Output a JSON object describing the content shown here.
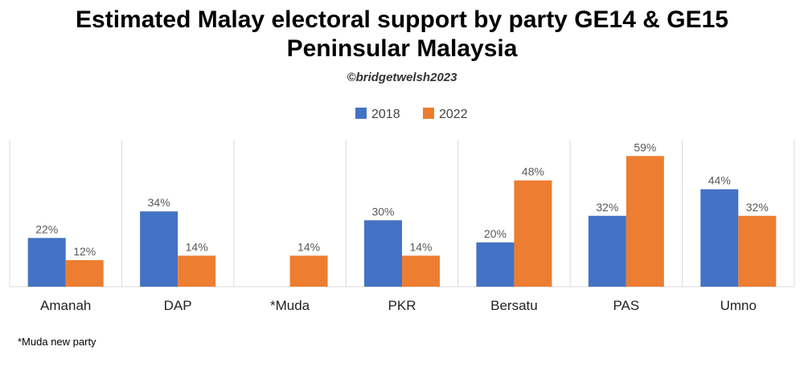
{
  "title_line1": "Estimated Malay electoral support by party GE14 & GE15",
  "title_line2": "Peninsular Malaysia",
  "credit": "©bridgetwelsh2023",
  "footnote": "*Muda new party",
  "chart_data": {
    "type": "bar",
    "categories": [
      "Amanah",
      "DAP",
      "*Muda",
      "PKR",
      "Bersatu",
      "PAS",
      "Umno"
    ],
    "series": [
      {
        "name": "2018",
        "color": "#4472C4",
        "values": [
          22,
          34,
          null,
          30,
          20,
          32,
          44
        ],
        "labels": [
          "22%",
          "34%",
          "",
          "30%",
          "20%",
          "32%",
          "44%"
        ]
      },
      {
        "name": "2022",
        "color": "#ED7D31",
        "values": [
          12,
          14,
          14,
          14,
          48,
          59,
          32
        ],
        "labels": [
          "12%",
          "14%",
          "14%",
          "14%",
          "48%",
          "59%",
          "32%"
        ]
      }
    ],
    "ylim": [
      0,
      66
    ],
    "grid": "vertical category separators",
    "legend": "top-center"
  }
}
